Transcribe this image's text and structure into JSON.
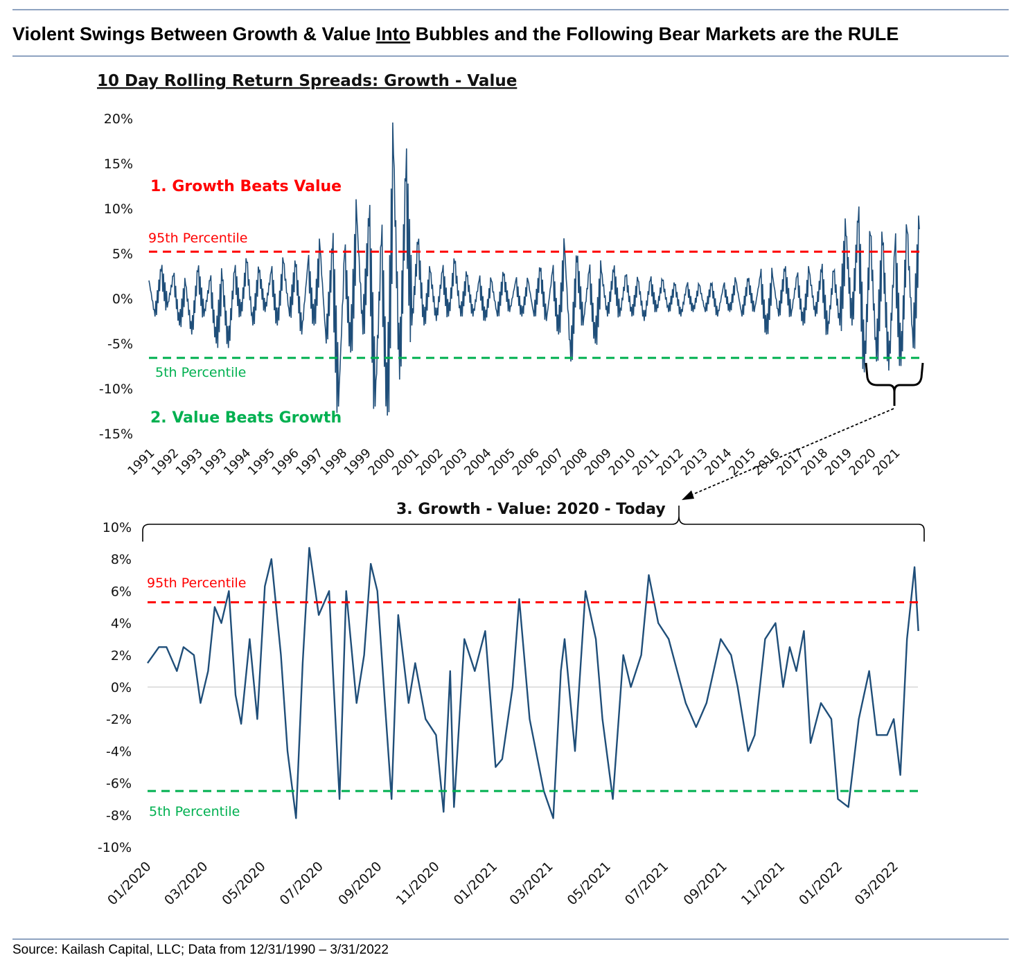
{
  "header": {
    "title_pre": "Violent Swings Between Growth & Value ",
    "title_link": "Into",
    "title_post": " Bubbles and the Following Bear Markets are the RULE"
  },
  "footer": {
    "source": "Source: Kailash Capital, LLC; Data from 12/31/1990 – 3/31/2022"
  },
  "colors": {
    "series": "#1f4e79",
    "p95": "#ff0000",
    "p5": "#00b050",
    "rule": "#4a6a9a"
  },
  "chart_data": [
    {
      "type": "line",
      "title": "10 Day Rolling Return Spreads: Growth - Value",
      "ylim": [
        -15,
        20
      ],
      "yticks": [
        "20%",
        "15%",
        "10%",
        "5%",
        "0%",
        "-5%",
        "-10%",
        "-15%"
      ],
      "ytick_values": [
        20,
        15,
        10,
        5,
        0,
        -5,
        -10,
        -15
      ],
      "xtick_labels": [
        "1991",
        "1992",
        "1993",
        "1993",
        "1994",
        "1995",
        "1996",
        "1997",
        "1998",
        "1999",
        "2000",
        "2001",
        "2002",
        "2003",
        "2004",
        "2005",
        "2006",
        "2007",
        "2008",
        "2009",
        "2010",
        "2011",
        "2012",
        "2013",
        "2014",
        "2015",
        "2016",
        "2017",
        "2018",
        "2019",
        "2020",
        "2021"
      ],
      "percentile_95": 5.2,
      "percentile_5": -6.6,
      "annotations": {
        "growth": "1. Growth Beats Value",
        "value": "2. Value Beats Growth",
        "p95": "95th Percentile",
        "p5": "5th Percentile"
      },
      "series_quarterly": [
        {
          "year": 1991,
          "values": [
            2,
            -2,
            3,
            -1
          ]
        },
        {
          "year": 1992,
          "values": [
            2.5,
            -3,
            1.5,
            -4
          ]
        },
        {
          "year": 1993,
          "values": [
            3,
            -2,
            2,
            -5
          ]
        },
        {
          "year": 1994,
          "values": [
            2,
            -5.5,
            3,
            -2
          ]
        },
        {
          "year": 1995,
          "values": [
            4,
            -3,
            3,
            -1.5
          ]
        },
        {
          "year": 1996,
          "values": [
            3,
            -3,
            4,
            -2
          ]
        },
        {
          "year": 1997,
          "values": [
            3.5,
            -4,
            4,
            -3
          ]
        },
        {
          "year": 1998,
          "values": [
            5.5,
            -5,
            5,
            -12
          ]
        },
        {
          "year": 1999,
          "values": [
            5,
            -6,
            9,
            -4
          ]
        },
        {
          "year": 2000,
          "values": [
            8,
            -12,
            6,
            -13
          ]
        },
        {
          "year": 2001,
          "values": [
            16,
            -9,
            13,
            -3
          ]
        },
        {
          "year": 2002,
          "values": [
            6,
            -3,
            3,
            -2.5
          ]
        },
        {
          "year": 2003,
          "values": [
            3,
            -2,
            4,
            -2
          ]
        },
        {
          "year": 2004,
          "values": [
            2.5,
            -2,
            2,
            -2.5
          ]
        },
        {
          "year": 2005,
          "values": [
            2,
            -2,
            2.5,
            -1.5
          ]
        },
        {
          "year": 2006,
          "values": [
            2,
            -2,
            2,
            -2
          ]
        },
        {
          "year": 2007,
          "values": [
            3,
            -2.5,
            3,
            -4
          ]
        },
        {
          "year": 2008,
          "values": [
            5.5,
            -7,
            4,
            -3
          ]
        },
        {
          "year": 2009,
          "values": [
            3,
            -5,
            3,
            -2
          ]
        },
        {
          "year": 2010,
          "values": [
            3,
            -2,
            2.5,
            -2
          ]
        },
        {
          "year": 2011,
          "values": [
            2,
            -2.5,
            2,
            -1.5
          ]
        },
        {
          "year": 2012,
          "values": [
            2,
            -1.5,
            1.5,
            -2
          ]
        },
        {
          "year": 2013,
          "values": [
            1.5,
            -1.5,
            1.5,
            -1.5
          ]
        },
        {
          "year": 2014,
          "values": [
            1.5,
            -2,
            1.5,
            -1.5
          ]
        },
        {
          "year": 2015,
          "values": [
            2,
            -2,
            2,
            -1.5
          ]
        },
        {
          "year": 2016,
          "values": [
            2.5,
            -4,
            2.5,
            -2
          ]
        },
        {
          "year": 2017,
          "values": [
            3,
            -2,
            2.5,
            -3
          ]
        },
        {
          "year": 2018,
          "values": [
            3,
            -2,
            3,
            -4
          ]
        },
        {
          "year": 2019,
          "values": [
            3,
            -3,
            7,
            -3
          ]
        },
        {
          "year": 2020,
          "values": [
            8.5,
            -8.2,
            7,
            -7
          ]
        },
        {
          "year": 2021,
          "values": [
            6,
            -8,
            5.5,
            -7.5
          ]
        },
        {
          "year": 2022,
          "values": [
            7.5,
            -5.5,
            7.7
          ]
        }
      ]
    },
    {
      "type": "line",
      "title": "3. Growth - Value: 2020 - Today",
      "ylim": [
        -10,
        10
      ],
      "yticks": [
        "10%",
        "8%",
        "6%",
        "4%",
        "2%",
        "0%",
        "-2%",
        "-4%",
        "-6%",
        "-8%",
        "-10%"
      ],
      "ytick_values": [
        10,
        8,
        6,
        4,
        2,
        0,
        -2,
        -4,
        -6,
        -8,
        -10
      ],
      "xtick_labels": [
        "01/2020",
        "03/2020",
        "05/2020",
        "07/2020",
        "09/2020",
        "11/2020",
        "01/2021",
        "03/2021",
        "05/2021",
        "07/2021",
        "09/2021",
        "11/2021",
        "01/2022",
        "03/2022"
      ],
      "xtick_dates": [
        "2020-01-01",
        "2020-03-01",
        "2020-05-01",
        "2020-07-01",
        "2020-09-01",
        "2020-11-01",
        "2021-01-01",
        "2021-03-01",
        "2021-05-01",
        "2021-07-01",
        "2021-09-01",
        "2021-11-01",
        "2022-01-01",
        "2022-03-01"
      ],
      "percentile_95": 5.3,
      "percentile_5": -6.5,
      "annotations": {
        "p95": "95th Percentile",
        "p5": "5th Percentile"
      },
      "points": [
        [
          "2020-01-01",
          1.5
        ],
        [
          "2020-01-13",
          2.5
        ],
        [
          "2020-01-21",
          2.5
        ],
        [
          "2020-02-01",
          1
        ],
        [
          "2020-02-08",
          2.5
        ],
        [
          "2020-02-19",
          2
        ],
        [
          "2020-02-26",
          -1
        ],
        [
          "2020-03-05",
          1
        ],
        [
          "2020-03-12",
          5
        ],
        [
          "2020-03-19",
          4
        ],
        [
          "2020-03-27",
          6
        ],
        [
          "2020-04-03",
          -0.5
        ],
        [
          "2020-04-09",
          -2.3
        ],
        [
          "2020-04-18",
          3
        ],
        [
          "2020-04-26",
          -2
        ],
        [
          "2020-05-04",
          6.3
        ],
        [
          "2020-05-11",
          8
        ],
        [
          "2020-05-21",
          2
        ],
        [
          "2020-05-28",
          -4
        ],
        [
          "2020-06-06",
          -8.2
        ],
        [
          "2020-06-13",
          1.5
        ],
        [
          "2020-06-20",
          8.7
        ],
        [
          "2020-06-30",
          4.5
        ],
        [
          "2020-07-11",
          6
        ],
        [
          "2020-07-15",
          1
        ],
        [
          "2020-07-22",
          -7
        ],
        [
          "2020-07-29",
          6
        ],
        [
          "2020-08-09",
          -1
        ],
        [
          "2020-08-17",
          2
        ],
        [
          "2020-08-24",
          7.7
        ],
        [
          "2020-08-31",
          6
        ],
        [
          "2020-09-08",
          -1
        ],
        [
          "2020-09-15",
          -7
        ],
        [
          "2020-09-22",
          4.5
        ],
        [
          "2020-10-03",
          -1
        ],
        [
          "2020-10-10",
          1.5
        ],
        [
          "2020-10-21",
          -2
        ],
        [
          "2020-11-01",
          -3
        ],
        [
          "2020-11-09",
          -7.8
        ],
        [
          "2020-11-16",
          1
        ],
        [
          "2020-11-20",
          -7.5
        ],
        [
          "2020-12-01",
          3
        ],
        [
          "2020-12-12",
          1
        ],
        [
          "2020-12-23",
          3.5
        ],
        [
          "2021-01-03",
          -5
        ],
        [
          "2021-01-10",
          -4.5
        ],
        [
          "2021-01-21",
          0
        ],
        [
          "2021-01-28",
          5.5
        ],
        [
          "2021-02-08",
          -2
        ],
        [
          "2021-02-23",
          -6.5
        ],
        [
          "2021-03-05",
          -8.2
        ],
        [
          "2021-03-13",
          1
        ],
        [
          "2021-03-17",
          3
        ],
        [
          "2021-03-28",
          -4
        ],
        [
          "2021-04-08",
          6
        ],
        [
          "2021-04-19",
          3
        ],
        [
          "2021-04-26",
          -2
        ],
        [
          "2021-05-07",
          -7
        ],
        [
          "2021-05-18",
          2
        ],
        [
          "2021-05-26",
          0
        ],
        [
          "2021-06-06",
          2
        ],
        [
          "2021-06-14",
          7
        ],
        [
          "2021-06-24",
          4
        ],
        [
          "2021-07-05",
          3
        ],
        [
          "2021-07-23",
          -1
        ],
        [
          "2021-08-03",
          -2.5
        ],
        [
          "2021-08-14",
          -1
        ],
        [
          "2021-08-29",
          3
        ],
        [
          "2021-09-09",
          2
        ],
        [
          "2021-09-16",
          0
        ],
        [
          "2021-09-27",
          -4
        ],
        [
          "2021-10-04",
          -3
        ],
        [
          "2021-10-15",
          3
        ],
        [
          "2021-10-26",
          4
        ],
        [
          "2021-11-03",
          0
        ],
        [
          "2021-11-10",
          2.5
        ],
        [
          "2021-11-17",
          1
        ],
        [
          "2021-11-25",
          3.5
        ],
        [
          "2021-12-02",
          -3.5
        ],
        [
          "2021-12-13",
          -1
        ],
        [
          "2021-12-24",
          -2
        ],
        [
          "2021-12-31",
          -7
        ],
        [
          "2022-01-11",
          -7.5
        ],
        [
          "2022-01-22",
          -2
        ],
        [
          "2022-02-02",
          1
        ],
        [
          "2022-02-10",
          -3
        ],
        [
          "2022-02-21",
          -3
        ],
        [
          "2022-02-28",
          -2
        ],
        [
          "2022-03-07",
          -5.5
        ],
        [
          "2022-03-14",
          3
        ],
        [
          "2022-03-22",
          7.5
        ],
        [
          "2022-03-26",
          3.5
        ]
      ]
    }
  ]
}
